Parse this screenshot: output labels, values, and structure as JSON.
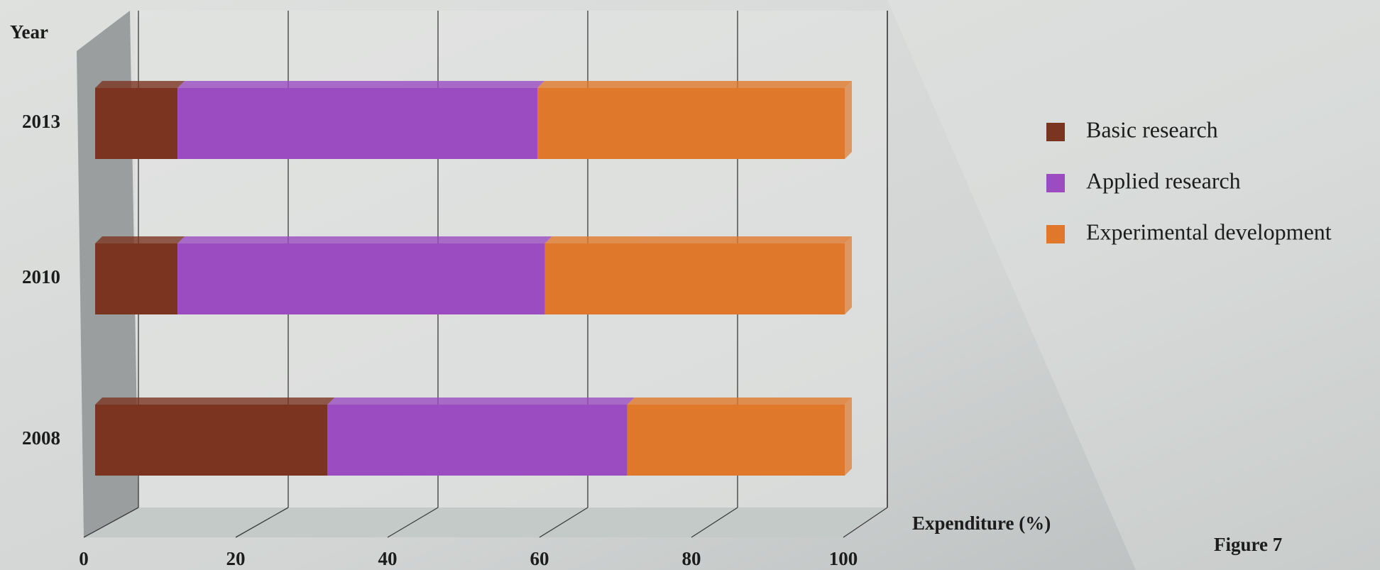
{
  "chart_data": {
    "type": "stacked-bar-horizontal",
    "y_axis_label": "Year",
    "x_axis_label": "Expenditure (%)",
    "caption": "Figure 7",
    "categories": [
      "2013",
      "2010",
      "2008"
    ],
    "series": [
      {
        "name": "Basic research",
        "color": "#7a3420",
        "values": [
          11,
          11,
          31
        ]
      },
      {
        "name": "Applied research",
        "color": "#9a4cc0",
        "values": [
          48,
          49,
          40
        ]
      },
      {
        "name": "Experimental development",
        "color": "#e0782c",
        "values": [
          41,
          40,
          29
        ]
      }
    ],
    "xlim": [
      0,
      100
    ],
    "xticks": [
      0,
      20,
      40,
      60,
      80,
      100
    ],
    "grid": true,
    "legend": "right"
  }
}
